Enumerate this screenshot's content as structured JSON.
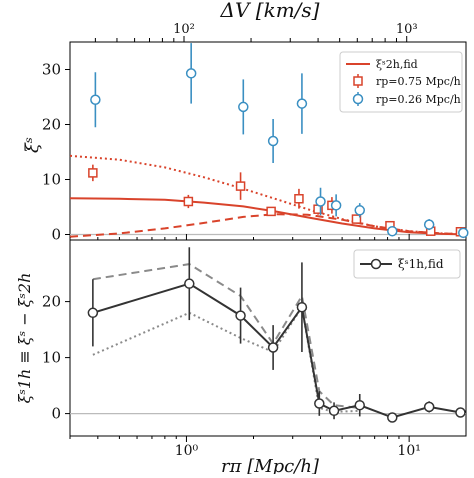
{
  "chart_data": [
    {
      "type": "scatter",
      "panel": "top",
      "top_axis_label": "ΔV [km/s]",
      "top_axis_ticks": [
        "10²",
        "10³"
      ],
      "ylabel": "ξˢ",
      "xscale": "log",
      "xlim": [
        0.3,
        18
      ],
      "ylim": [
        -1,
        35
      ],
      "yticks": [
        "0",
        "10",
        "20",
        "30"
      ],
      "grid": false,
      "legend": {
        "position": "top-right",
        "entries": [
          {
            "label": "ξˢ2h,fid",
            "style": "line",
            "color": "#d9432b"
          },
          {
            "label": "rp=0.75 Mpc/h",
            "style": "square",
            "color": "#d9432b"
          },
          {
            "label": "rp=0.26 Mpc/h",
            "style": "circle",
            "color": "#3a8fc2"
          }
        ]
      },
      "series": [
        {
          "name": "rp=0.75 Mpc/h",
          "marker": "square",
          "color": "#d9432b",
          "points": [
            {
              "x": 0.38,
              "y": 11.2,
              "err": 1.5
            },
            {
              "x": 1.02,
              "y": 6.0,
              "err": 1.2
            },
            {
              "x": 1.75,
              "y": 8.8,
              "err": 2.5
            },
            {
              "x": 2.4,
              "y": 4.2,
              "err": 0.8
            },
            {
              "x": 3.2,
              "y": 6.5,
              "err": 1.8
            },
            {
              "x": 3.9,
              "y": 4.6,
              "err": 1.0
            },
            {
              "x": 4.5,
              "y": 5.3,
              "err": 1.5
            },
            {
              "x": 5.8,
              "y": 2.8,
              "err": 0.7
            },
            {
              "x": 8.2,
              "y": 1.6,
              "err": 0.7
            },
            {
              "x": 12.5,
              "y": 0.6,
              "err": 0.4
            },
            {
              "x": 17.0,
              "y": 0.5,
              "err": 0.3
            }
          ]
        },
        {
          "name": "rp=0.26 Mpc/h",
          "marker": "circle",
          "color": "#3a8fc2",
          "points": [
            {
              "x": 0.39,
              "y": 24.5,
              "err": 5.0
            },
            {
              "x": 1.05,
              "y": 29.3,
              "err": 5.5
            },
            {
              "x": 1.8,
              "y": 23.2,
              "err": 5.0
            },
            {
              "x": 2.45,
              "y": 17.0,
              "err": 4.0
            },
            {
              "x": 3.3,
              "y": 23.8,
              "err": 5.5
            },
            {
              "x": 4.0,
              "y": 6.0,
              "err": 2.5
            },
            {
              "x": 4.7,
              "y": 5.3,
              "err": 2.0
            },
            {
              "x": 6.0,
              "y": 4.4,
              "err": 1.3
            },
            {
              "x": 8.4,
              "y": 0.6,
              "err": 0.5
            },
            {
              "x": 12.3,
              "y": 1.8,
              "err": 1.0
            },
            {
              "x": 17.5,
              "y": 0.3,
              "err": 0.3
            }
          ]
        }
      ],
      "curves": [
        {
          "name": "ξˢ2h,fid",
          "style": "solid",
          "color": "#d9432b",
          "points": [
            [
              0.3,
              6.6
            ],
            [
              0.5,
              6.5
            ],
            [
              0.8,
              6.3
            ],
            [
              1.2,
              5.8
            ],
            [
              1.8,
              5.1
            ],
            [
              2.5,
              4.2
            ],
            [
              3.5,
              3.1
            ],
            [
              5.0,
              2.0
            ],
            [
              7.0,
              1.1
            ],
            [
              10.0,
              0.4
            ],
            [
              14.0,
              0.1
            ],
            [
              18.0,
              0.02
            ]
          ]
        },
        {
          "style": "dotted",
          "color": "#d9432b",
          "points": [
            [
              0.3,
              14.3
            ],
            [
              0.5,
              13.6
            ],
            [
              0.8,
              12.2
            ],
            [
              1.2,
              10.4
            ],
            [
              1.8,
              8.3
            ],
            [
              2.5,
              6.5
            ],
            [
              3.5,
              4.6
            ],
            [
              5.0,
              2.8
            ],
            [
              7.0,
              1.5
            ],
            [
              10.0,
              0.6
            ],
            [
              14.0,
              0.2
            ],
            [
              18.0,
              0.05
            ]
          ]
        },
        {
          "style": "dashed",
          "color": "#d9432b",
          "points": [
            [
              0.3,
              -0.4
            ],
            [
              0.5,
              0.2
            ],
            [
              0.8,
              1.1
            ],
            [
              1.2,
              2.1
            ],
            [
              1.8,
              3.2
            ],
            [
              2.5,
              3.7
            ],
            [
              3.5,
              3.6
            ],
            [
              5.0,
              2.7
            ],
            [
              7.0,
              1.5
            ],
            [
              10.0,
              0.6
            ],
            [
              14.0,
              0.2
            ],
            [
              18.0,
              0.05
            ]
          ]
        }
      ]
    },
    {
      "type": "line",
      "panel": "bottom",
      "xlabel": "rπ [Mpc/h]",
      "ylabel": "ξˢ1h ≡ ξˢ − ξˢ2h",
      "xscale": "log",
      "xlim": [
        0.3,
        18
      ],
      "ylim": [
        -4,
        31
      ],
      "yticks": [
        "0",
        "10",
        "20"
      ],
      "xticks": [
        "10⁰",
        "10¹"
      ],
      "grid": false,
      "legend": {
        "position": "top-right",
        "entries": [
          {
            "label": "ξˢ1h,fid",
            "style": "line-marker",
            "color": "#333333"
          }
        ]
      },
      "series": [
        {
          "name": "ξˢ1h,fid",
          "marker": "circle",
          "color": "#333333",
          "points": [
            {
              "x": 0.38,
              "y": 18.0,
              "err": 6.0
            },
            {
              "x": 1.03,
              "y": 23.2,
              "err": 6.5
            },
            {
              "x": 1.75,
              "y": 17.5,
              "err": 5.0
            },
            {
              "x": 2.45,
              "y": 11.8,
              "err": 4.0
            },
            {
              "x": 3.3,
              "y": 19.0,
              "err": 8.0
            },
            {
              "x": 3.95,
              "y": 1.8,
              "err": 2.2
            },
            {
              "x": 4.6,
              "y": 0.5,
              "err": 1.5
            },
            {
              "x": 6.0,
              "y": 1.5,
              "err": 2.0
            },
            {
              "x": 8.4,
              "y": -0.7,
              "err": 0.5
            },
            {
              "x": 12.3,
              "y": 1.2,
              "err": 1.0
            },
            {
              "x": 17.0,
              "y": 0.2,
              "err": 0.4
            }
          ]
        }
      ],
      "curves": [
        {
          "style": "dashed",
          "color": "#8a8a8a",
          "points": [
            [
              0.38,
              24.0
            ],
            [
              1.03,
              26.7
            ],
            [
              1.75,
              21.0
            ],
            [
              2.45,
              12.5
            ],
            [
              3.3,
              21.0
            ],
            [
              3.95,
              4.0
            ],
            [
              4.6,
              1.5
            ],
            [
              6.0,
              1.0
            ]
          ]
        },
        {
          "style": "dotted",
          "color": "#8a8a8a",
          "points": [
            [
              0.38,
              10.5
            ],
            [
              1.03,
              18.0
            ],
            [
              1.75,
              13.5
            ],
            [
              2.45,
              11.0
            ],
            [
              3.3,
              19.0
            ],
            [
              3.95,
              1.0
            ],
            [
              4.6,
              0.3
            ],
            [
              6.0,
              0.5
            ]
          ]
        }
      ]
    }
  ]
}
